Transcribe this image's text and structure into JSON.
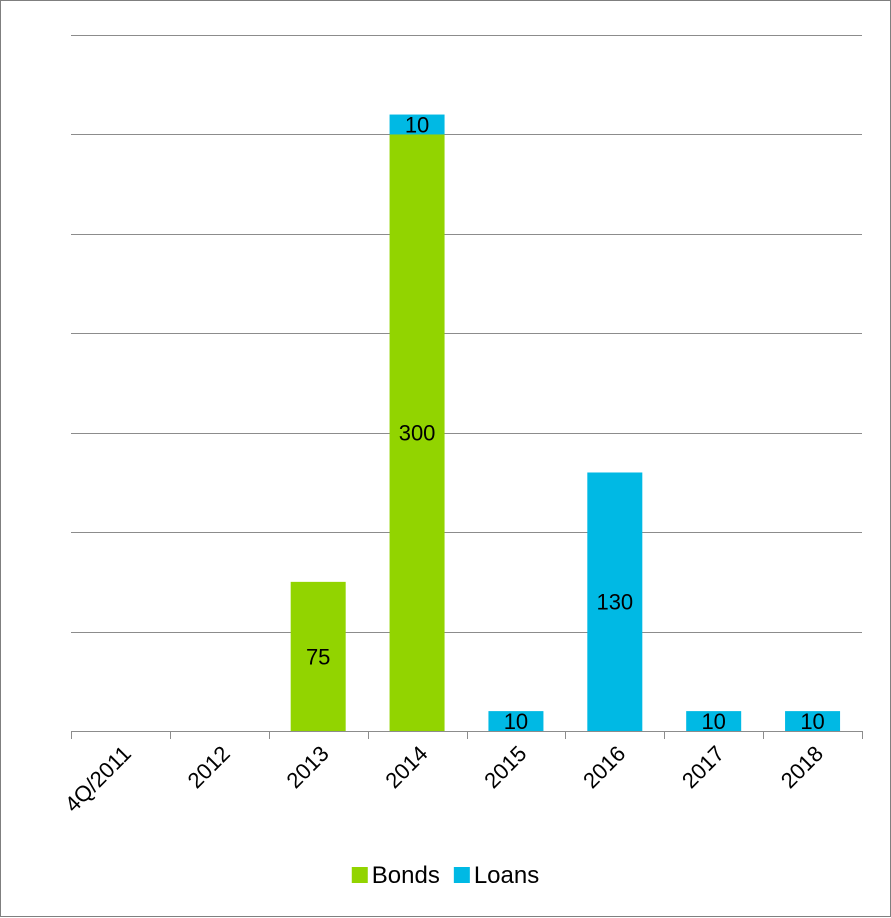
{
  "chart_data": {
    "type": "bar",
    "stacked": true,
    "title": "",
    "xlabel": "",
    "ylabel": "",
    "categories": [
      "4Q/2011",
      "2012",
      "2013",
      "2014",
      "2015",
      "2016",
      "2017",
      "2018"
    ],
    "series": [
      {
        "name": "Bonds",
        "color": "#92d400",
        "values": [
          0,
          0,
          75,
          300,
          0,
          0,
          0,
          0
        ],
        "labels": [
          "",
          "",
          "75",
          "300",
          "",
          "",
          "",
          ""
        ]
      },
      {
        "name": "Loans",
        "color": "#00b9e4",
        "values": [
          0,
          0,
          0,
          10,
          10,
          130,
          10,
          10
        ],
        "labels": [
          "",
          "",
          "",
          "10",
          "10",
          "130",
          "10",
          "10"
        ]
      }
    ],
    "ylim": [
      0,
      350
    ],
    "grid": true,
    "y_tick_labels_shown": false,
    "legend": "bottom"
  }
}
